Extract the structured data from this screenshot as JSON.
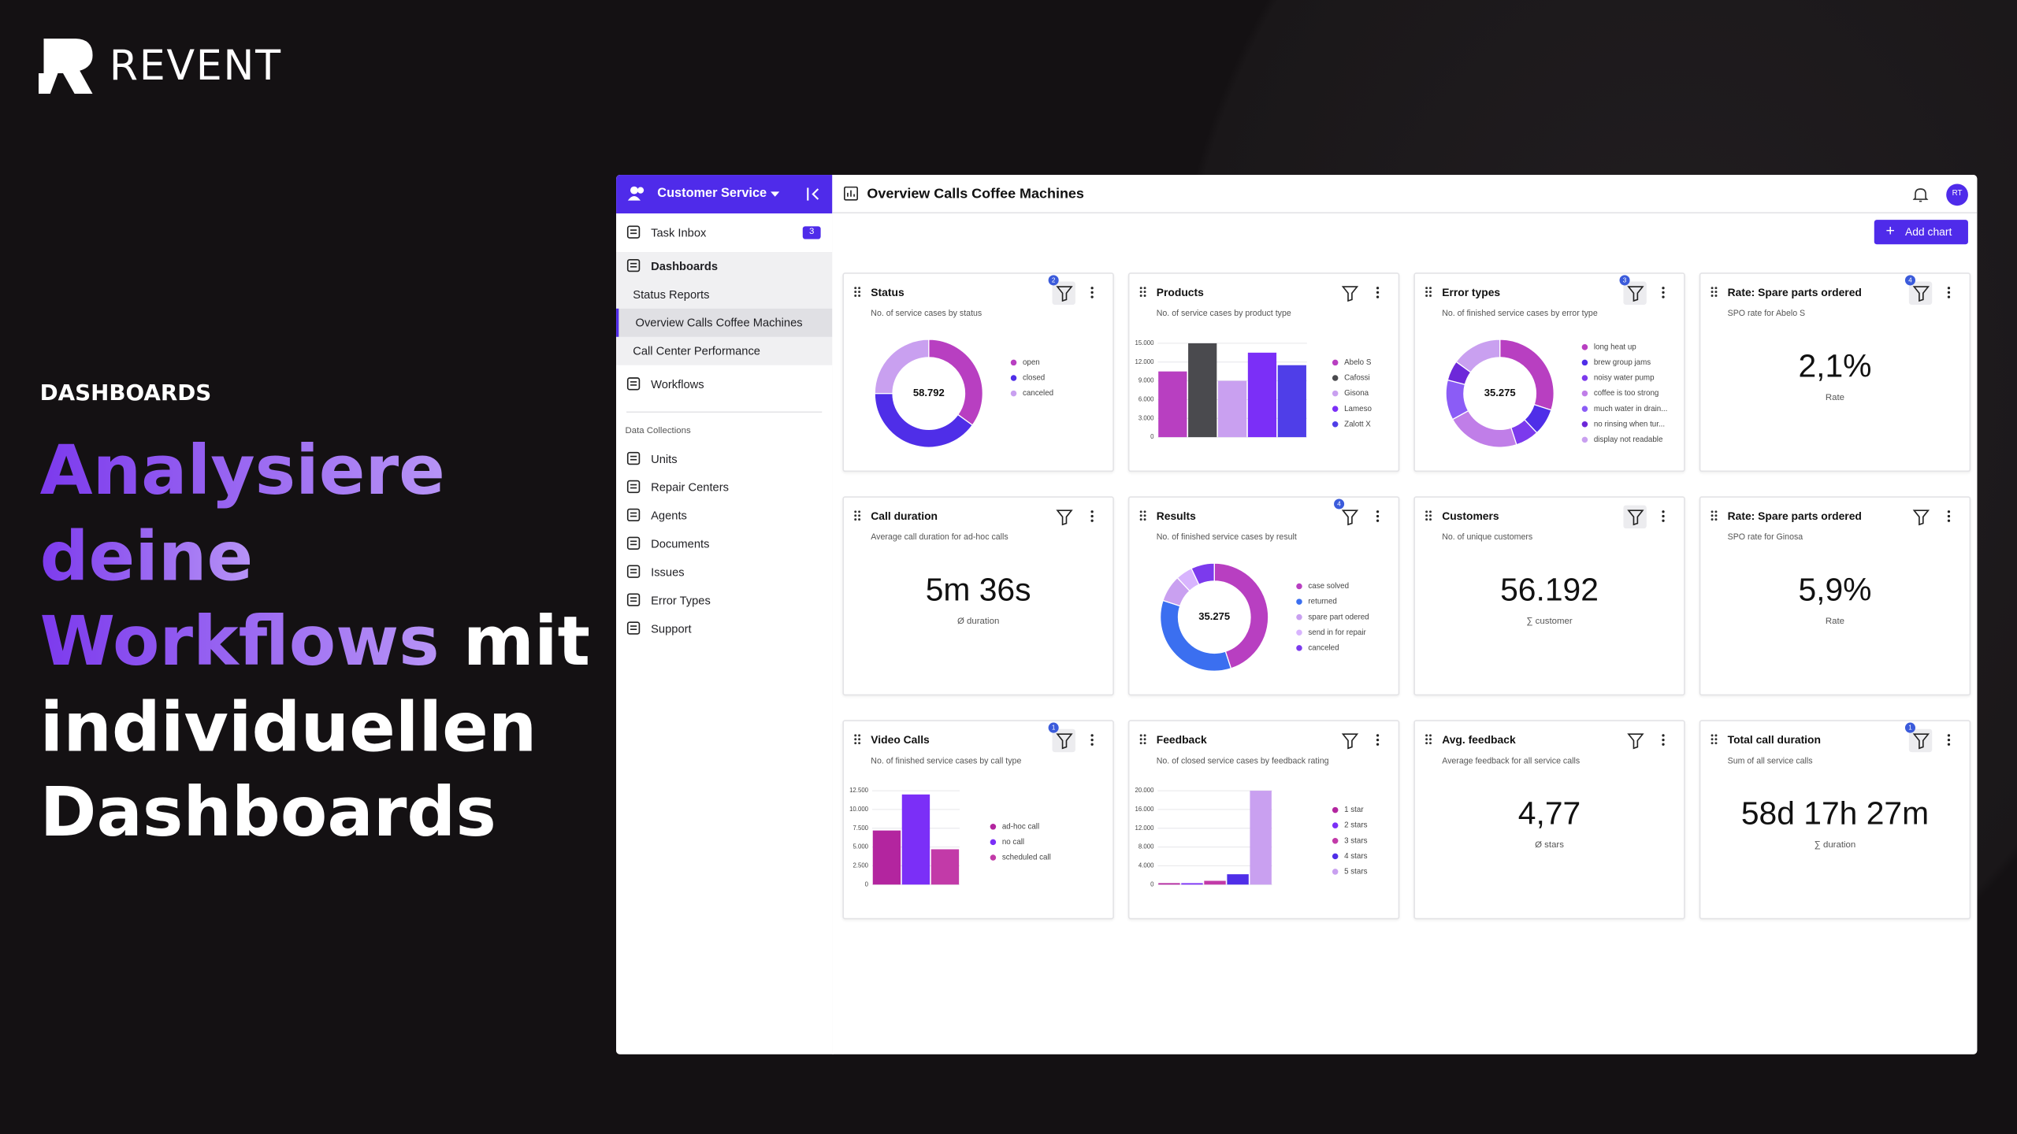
{
  "brand": "REVENT",
  "hero": {
    "kicker": "DASHBOARDS",
    "headline": [
      {
        "text": "Analysiere",
        "highlight": true
      },
      {
        "text": "deine",
        "highlight": true
      },
      {
        "text": "Workflows",
        "highlight": true
      },
      {
        "text": "mit",
        "highlight": false
      },
      {
        "text": "individuellen",
        "highlight": false
      },
      {
        "text": "Dashboards",
        "highlight": false
      }
    ]
  },
  "sidebar": {
    "workspace": "Customer Service",
    "items": [
      {
        "label": "Task Inbox",
        "badge": 3
      },
      {
        "label": "Dashboards"
      },
      {
        "label": "Status Reports",
        "sub": true
      },
      {
        "label": "Overview Calls Coffee Machines",
        "sub": true,
        "active": true
      },
      {
        "label": "Call Center Performance",
        "sub": true
      },
      {
        "label": "Workflows"
      }
    ],
    "section": "Data Collections",
    "collections": [
      "Units",
      "Repair Centers",
      "Agents",
      "Documents",
      "Issues",
      "Error Types",
      "Support"
    ]
  },
  "header": {
    "title": "Overview Calls Coffee Machines",
    "avatar": "RT",
    "button": "Add chart"
  },
  "cards": [
    {
      "title": "Status",
      "subtitle": "No. of service cases by status",
      "filter_count": 2,
      "filter_active": true,
      "chart": {
        "type": "donut",
        "center_label": "58.792",
        "categories": [
          "open",
          "closed",
          "canceled"
        ],
        "values": [
          35,
          40,
          25
        ],
        "colors": [
          "#b83fc1",
          "#4f2ee8",
          "#c9a0f0"
        ]
      }
    },
    {
      "title": "Products",
      "subtitle": "No. of service cases by product type",
      "chart": {
        "type": "bar",
        "categories": [
          "Abelo S",
          "Cafossi",
          "Gisona",
          "Lameso",
          "Zalott X"
        ],
        "values": [
          10500,
          15000,
          9000,
          13500,
          11500
        ],
        "colors": [
          "#b83fc1",
          "#4a4a4e",
          "#c9a0f0",
          "#7b2ff7",
          "#4f3ee8"
        ],
        "ylim": [
          0,
          15000
        ],
        "yticks": [
          0,
          {
            "value": 3000,
            "label": "3.000"
          },
          {
            "value": 6000,
            "label": "6.000"
          },
          {
            "value": 9000,
            "label": "9.000"
          },
          {
            "value": 12000,
            "label": "12.000"
          },
          {
            "value": 15000,
            "label": "15.000"
          }
        ]
      }
    },
    {
      "title": "Error types",
      "subtitle": "No. of finished service cases by error type",
      "filter_count": 3,
      "filter_active": true,
      "chart": {
        "type": "donut",
        "center_label": "35.275",
        "categories": [
          "long heat up",
          "brew group jams",
          "noisy water pump",
          "coffee is too strong",
          "much water in drain...",
          "no rinsing when tur...",
          "display not readable"
        ],
        "values": [
          30,
          8,
          7,
          22,
          12,
          6,
          15
        ],
        "colors": [
          "#b83fc1",
          "#4f2ee8",
          "#7c3aed",
          "#c07ee8",
          "#8b5cf6",
          "#6d28d9",
          "#c9a0f0"
        ]
      }
    },
    {
      "title": "Rate: Spare parts ordered",
      "subtitle": "SPO rate for Abelo S",
      "filter_count": 4,
      "filter_active": true,
      "chart": {
        "type": "kpi",
        "value": "2,1%",
        "caption": "Rate"
      }
    },
    {
      "title": "Call duration",
      "subtitle": "Average call duration for ad-hoc calls",
      "chart": {
        "type": "kpi",
        "value": "5m 36s",
        "caption": "Ø duration"
      }
    },
    {
      "title": "Results",
      "subtitle": "No. of finished service cases by result",
      "filter_count": 4,
      "chart": {
        "type": "donut",
        "center_label": "35.275",
        "categories": [
          "case solved",
          "returned",
          "spare part odered",
          "send in for repair",
          "canceled"
        ],
        "values": [
          45,
          35,
          8,
          5,
          7
        ],
        "colors": [
          "#b83fc1",
          "#3b6ff0",
          "#c9a0f0",
          "#d8b4fe",
          "#7c3aed"
        ]
      }
    },
    {
      "title": "Customers",
      "subtitle": "No. of unique customers",
      "filter_active": true,
      "chart": {
        "type": "kpi",
        "value": "56.192",
        "caption": "∑ customer"
      }
    },
    {
      "title": "Rate: Spare parts ordered",
      "subtitle": "SPO rate for Ginosa",
      "chart": {
        "type": "kpi",
        "value": "5,9%",
        "caption": "Rate"
      }
    },
    {
      "title": "Video Calls",
      "subtitle": "No. of finished service cases by call type",
      "filter_count": 1,
      "filter_active": true,
      "chart": {
        "type": "bar",
        "categories": [
          "ad-hoc call",
          "no call",
          "scheduled call"
        ],
        "values": [
          7200,
          12000,
          4700
        ],
        "colors": [
          "#b3259f",
          "#7b2ff7",
          "#c23aa8"
        ],
        "ylim": [
          0,
          12500
        ],
        "yticks": [
          0,
          {
            "value": 2500,
            "label": "2.500"
          },
          {
            "value": 5000,
            "label": "5.000"
          },
          {
            "value": 7500,
            "label": "7.500"
          },
          {
            "value": 10000,
            "label": "10.000"
          },
          {
            "value": 12500,
            "label": "12.500"
          }
        ]
      }
    },
    {
      "title": "Feedback",
      "subtitle": "No. of closed service cases by feedback rating",
      "chart": {
        "type": "bar",
        "categories": [
          "1 star",
          "2 stars",
          "3 stars",
          "4 stars",
          "5 stars"
        ],
        "values": [
          300,
          300,
          800,
          2200,
          20000
        ],
        "colors": [
          "#b3259f",
          "#7b2ff7",
          "#c23aa8",
          "#4f2ee8",
          "#c9a0f0"
        ],
        "ylim": [
          0,
          20000
        ],
        "yticks": [
          0,
          {
            "value": 4000,
            "label": "4.000"
          },
          {
            "value": 8000,
            "label": "8.000"
          },
          {
            "value": 12000,
            "label": "12.000"
          },
          {
            "value": 16000,
            "label": "16.000"
          },
          {
            "value": 20000,
            "label": "20.000"
          }
        ]
      }
    },
    {
      "title": "Avg. feedback",
      "subtitle": "Average feedback for all service calls",
      "chart": {
        "type": "kpi",
        "value": "4,77",
        "caption": "Ø stars"
      }
    },
    {
      "title": "Total call duration",
      "subtitle": "Sum of all service calls",
      "filter_count": 1,
      "filter_active": true,
      "chart": {
        "type": "kpi",
        "value": "58d 17h 27m",
        "caption": "∑ duration"
      }
    }
  ]
}
